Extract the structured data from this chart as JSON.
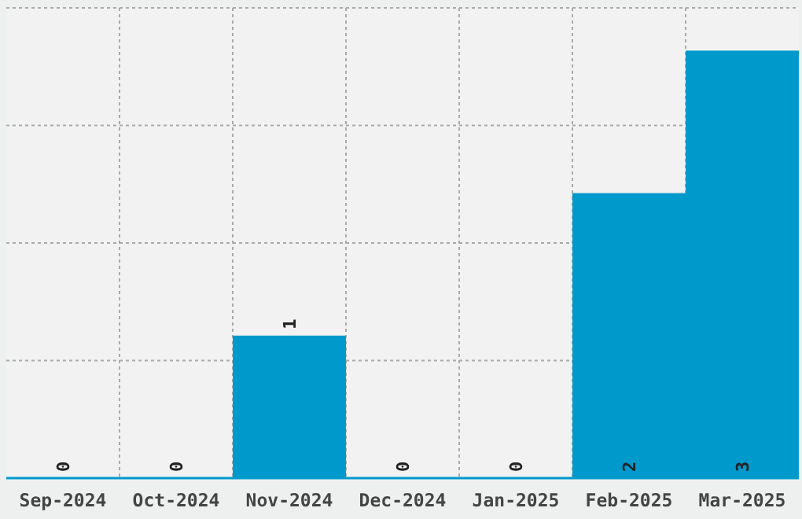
{
  "chart_data": {
    "type": "bar",
    "categories": [
      "Sep-2024",
      "Oct-2024",
      "Nov-2024",
      "Dec-2024",
      "Jan-2025",
      "Feb-2025",
      "Mar-2025"
    ],
    "values": [
      0,
      0,
      1,
      0,
      0,
      2,
      3
    ],
    "color": "#0099cc",
    "ylim": [
      0,
      3.3
    ],
    "yticks": [
      {
        "value": 0,
        "label": null
      },
      {
        "value": 0.825,
        "label": null
      },
      {
        "value": 1.65,
        "label": null
      },
      {
        "value": 2.475,
        "label": null
      },
      {
        "value": 3.3,
        "label": null
      }
    ],
    "tick_labels": "x",
    "grid": true,
    "data_labels": true
  }
}
